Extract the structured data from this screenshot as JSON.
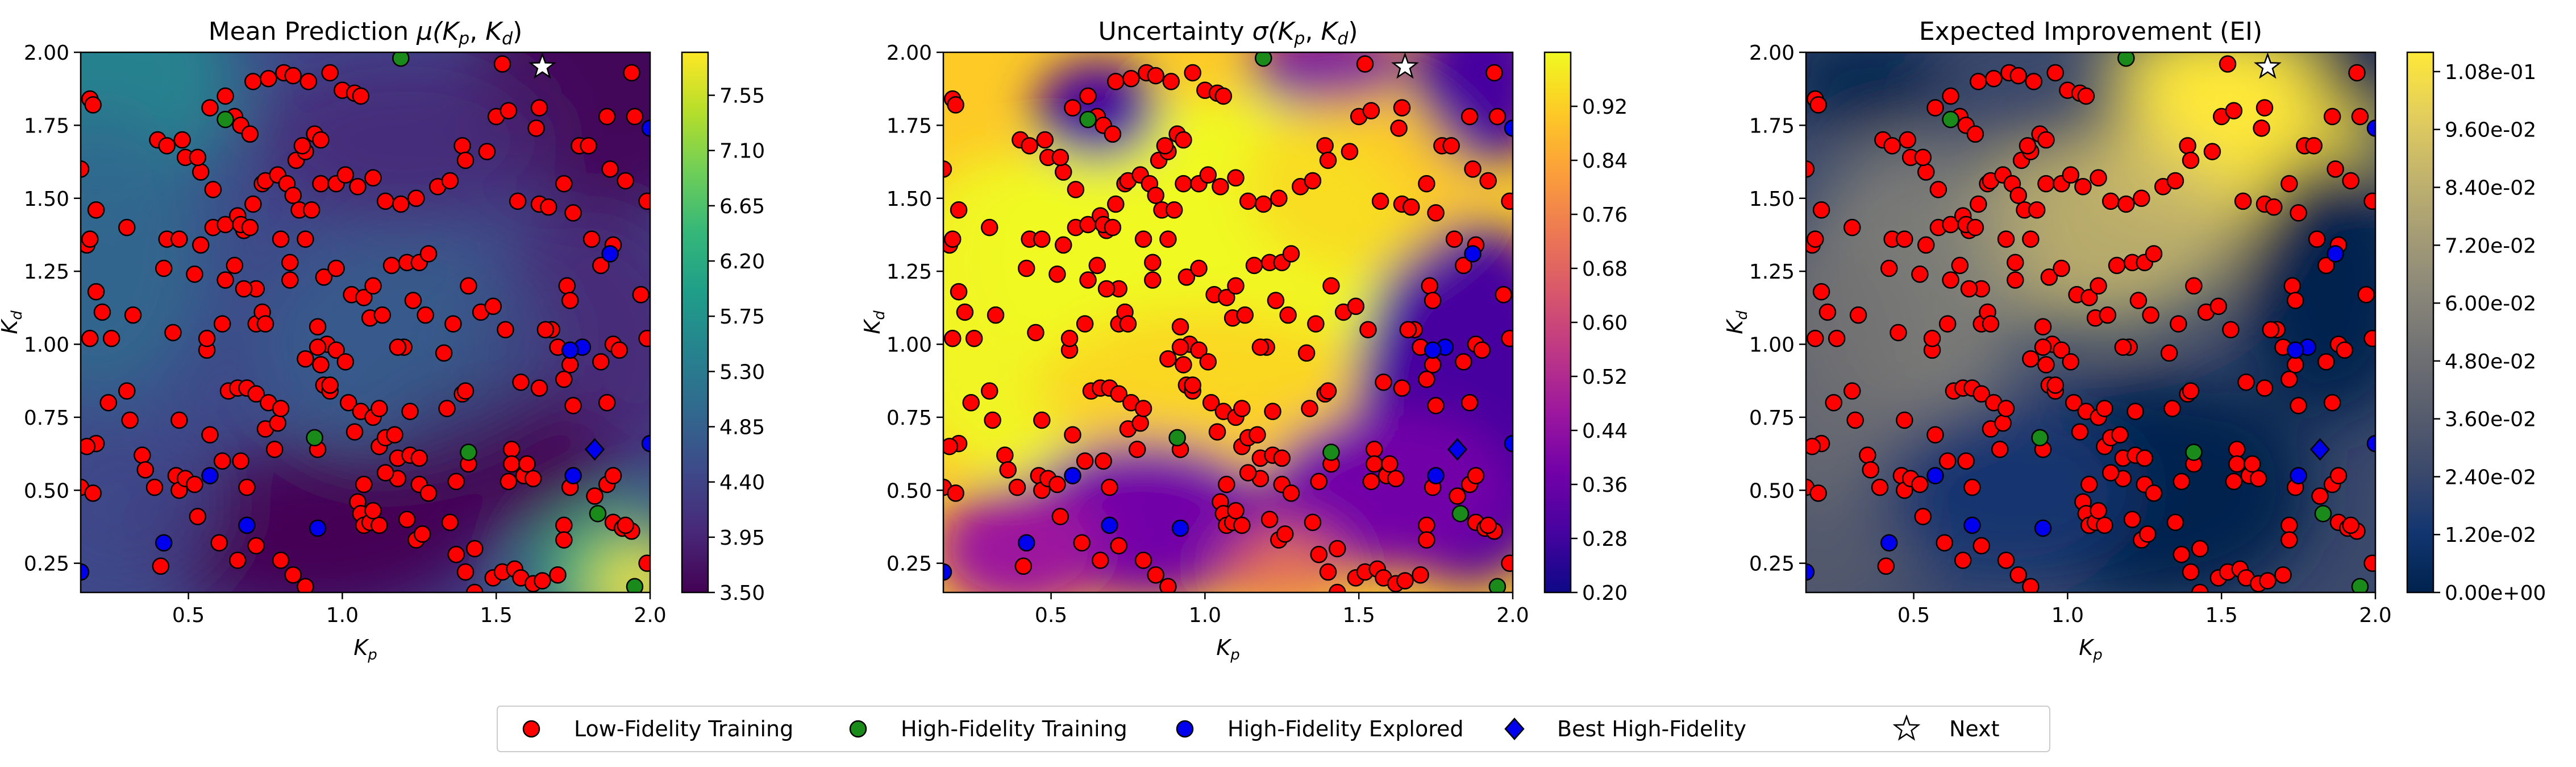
{
  "colors": {
    "low_fidelity": "#ff0000",
    "high_fidelity_training": "#1a8a1a",
    "high_fidelity_explored": "#0000ee",
    "best_high_fidelity": "#0000ee",
    "next": "#ffffff",
    "marker_edge": "#000000"
  },
  "legend": {
    "position": "bottom-center",
    "items": [
      {
        "label": "Low-Fidelity Training",
        "marker": "circle",
        "color": "#ff0000"
      },
      {
        "label": "High-Fidelity Training",
        "marker": "circle",
        "color": "#1a8a1a"
      },
      {
        "label": "High-Fidelity Explored",
        "marker": "circle",
        "color": "#0000ee"
      },
      {
        "label": "Best High-Fidelity",
        "marker": "diamond",
        "color": "#0000ee"
      },
      {
        "label": "Next",
        "marker": "star",
        "color": "#ffffff"
      }
    ]
  },
  "chart_data": [
    {
      "type": "heatmap",
      "title": "Mean Prediction μ(Kp, Kd)",
      "title_main": "Mean Prediction ",
      "title_func": "μ",
      "xlabel": "K",
      "xlabel_sub": "p",
      "ylabel": "K",
      "ylabel_sub": "d",
      "xlim": [
        0.15,
        2.0
      ],
      "ylim": [
        0.15,
        2.0
      ],
      "xticks": [
        "0.5",
        "1.0",
        "1.5",
        "2.0"
      ],
      "yticks": [
        "0.25",
        "0.50",
        "0.75",
        "1.00",
        "1.25",
        "1.50",
        "1.75",
        "2.00"
      ],
      "colormap": "viridis",
      "colorbar_range": [
        3.5,
        7.9
      ],
      "colorbar_ticks": [
        "3.50",
        "3.95",
        "4.40",
        "4.85",
        "5.30",
        "5.75",
        "6.20",
        "6.65",
        "7.10",
        "7.55"
      ]
    },
    {
      "type": "heatmap",
      "title": "Uncertainty σ(Kp, Kd)",
      "title_main": "Uncertainty ",
      "title_func": "σ",
      "xlabel": "K",
      "xlabel_sub": "p",
      "ylabel": "K",
      "ylabel_sub": "d",
      "xlim": [
        0.15,
        2.0
      ],
      "ylim": [
        0.15,
        2.0
      ],
      "xticks": [
        "0.5",
        "1.0",
        "1.5",
        "2.0"
      ],
      "yticks": [
        "0.25",
        "0.50",
        "0.75",
        "1.00",
        "1.25",
        "1.50",
        "1.75",
        "2.00"
      ],
      "colormap": "plasma",
      "colorbar_range": [
        0.2,
        1.0
      ],
      "colorbar_ticks": [
        "0.20",
        "0.28",
        "0.36",
        "0.44",
        "0.52",
        "0.60",
        "0.68",
        "0.76",
        "0.84",
        "0.92"
      ]
    },
    {
      "type": "heatmap",
      "title": "Expected Improvement (EI)",
      "xlabel": "K",
      "xlabel_sub": "p",
      "ylabel": "K",
      "ylabel_sub": "d",
      "xlim": [
        0.15,
        2.0
      ],
      "ylim": [
        0.15,
        2.0
      ],
      "xticks": [
        "0.5",
        "1.0",
        "1.5",
        "2.0"
      ],
      "yticks": [
        "0.25",
        "0.50",
        "0.75",
        "1.00",
        "1.25",
        "1.50",
        "1.75",
        "2.00"
      ],
      "colormap": "cividis",
      "colorbar_range": [
        0.0,
        0.112
      ],
      "colorbar_ticks": [
        "0.00e+00",
        "1.20e-02",
        "2.40e-02",
        "3.60e-02",
        "4.80e-02",
        "6.00e-02",
        "7.20e-02",
        "8.40e-02",
        "9.60e-02",
        "1.08e-01"
      ]
    }
  ],
  "points": {
    "low_fidelity_training": [
      [
        0.18,
        1.84
      ],
      [
        0.19,
        1.82
      ],
      [
        0.15,
        1.6
      ],
      [
        0.17,
        1.34
      ],
      [
        0.18,
        1.36
      ],
      [
        0.2,
        1.46
      ],
      [
        0.2,
        1.18
      ],
      [
        0.22,
        1.11
      ],
      [
        0.18,
        1.02
      ],
      [
        0.25,
        1.02
      ],
      [
        0.3,
        1.4
      ],
      [
        0.32,
        1.1
      ],
      [
        0.24,
        0.8
      ],
      [
        0.3,
        0.84
      ],
      [
        0.31,
        0.74
      ],
      [
        0.2,
        0.66
      ],
      [
        0.17,
        0.65
      ],
      [
        0.15,
        0.51
      ],
      [
        0.19,
        0.49
      ],
      [
        0.35,
        0.62
      ],
      [
        0.36,
        0.57
      ],
      [
        0.39,
        0.51
      ],
      [
        0.41,
        0.24
      ],
      [
        0.46,
        0.55
      ],
      [
        0.47,
        0.5
      ],
      [
        0.49,
        0.54
      ],
      [
        0.52,
        0.52
      ],
      [
        0.53,
        0.41
      ],
      [
        0.6,
        0.32
      ],
      [
        0.66,
        0.26
      ],
      [
        0.69,
        0.51
      ],
      [
        0.72,
        0.31
      ],
      [
        0.8,
        0.26
      ],
      [
        0.84,
        0.21
      ],
      [
        0.88,
        0.17
      ],
      [
        0.9,
        0.09
      ],
      [
        0.96,
        0.11
      ],
      [
        0.75,
        0.71
      ],
      [
        0.78,
        0.64
      ],
      [
        0.92,
        0.64
      ],
      [
        0.57,
        0.69
      ],
      [
        0.47,
        0.74
      ],
      [
        0.61,
        0.6
      ],
      [
        0.67,
        0.6
      ],
      [
        0.63,
        0.84
      ],
      [
        0.66,
        0.85
      ],
      [
        0.69,
        0.85
      ],
      [
        0.72,
        0.83
      ],
      [
        0.76,
        0.8
      ],
      [
        0.79,
        0.73
      ],
      [
        0.8,
        0.78
      ],
      [
        0.45,
        1.04
      ],
      [
        0.56,
        0.98
      ],
      [
        0.61,
        1.07
      ],
      [
        0.72,
        1.07
      ],
      [
        0.74,
        1.11
      ],
      [
        0.75,
        1.07
      ],
      [
        0.56,
        1.02
      ],
      [
        0.58,
        1.4
      ],
      [
        0.62,
        1.22
      ],
      [
        0.42,
        1.26
      ],
      [
        0.43,
        1.36
      ],
      [
        0.47,
        1.36
      ],
      [
        0.52,
        1.24
      ],
      [
        0.54,
        1.34
      ],
      [
        0.54,
        1.59
      ],
      [
        0.58,
        1.53
      ],
      [
        0.62,
        1.41
      ],
      [
        0.68,
        1.39
      ],
      [
        0.66,
        1.44
      ],
      [
        0.67,
        1.41
      ],
      [
        0.7,
        1.4
      ],
      [
        0.71,
        1.48
      ],
      [
        0.74,
        1.55
      ],
      [
        0.75,
        1.56
      ],
      [
        0.79,
        1.58
      ],
      [
        0.82,
        1.55
      ],
      [
        0.84,
        1.51
      ],
      [
        0.86,
        1.46
      ],
      [
        0.9,
        1.46
      ],
      [
        0.93,
        1.55
      ],
      [
        0.98,
        1.55
      ],
      [
        1.01,
        1.58
      ],
      [
        1.05,
        1.54
      ],
      [
        1.1,
        1.57
      ],
      [
        1.14,
        1.49
      ],
      [
        1.19,
        1.48
      ],
      [
        1.24,
        1.5
      ],
      [
        0.85,
        1.63
      ],
      [
        0.88,
        1.66
      ],
      [
        0.91,
        1.72
      ],
      [
        0.93,
        1.7
      ],
      [
        0.87,
        1.68
      ],
      [
        0.4,
        1.7
      ],
      [
        0.43,
        1.68
      ],
      [
        0.48,
        1.7
      ],
      [
        0.49,
        1.64
      ],
      [
        0.53,
        1.64
      ],
      [
        0.57,
        1.81
      ],
      [
        0.62,
        1.85
      ],
      [
        0.65,
        1.78
      ],
      [
        0.67,
        1.75
      ],
      [
        0.7,
        1.72
      ],
      [
        0.71,
        1.9
      ],
      [
        0.76,
        1.91
      ],
      [
        0.81,
        1.93
      ],
      [
        0.84,
        1.92
      ],
      [
        0.89,
        1.9
      ],
      [
        0.96,
        1.93
      ],
      [
        1.0,
        1.87
      ],
      [
        1.04,
        1.86
      ],
      [
        1.06,
        1.85
      ],
      [
        0.88,
        1.36
      ],
      [
        0.8,
        1.36
      ],
      [
        0.83,
        1.28
      ],
      [
        0.83,
        1.22
      ],
      [
        0.72,
        1.19
      ],
      [
        0.68,
        1.19
      ],
      [
        0.65,
        1.27
      ],
      [
        0.94,
        1.23
      ],
      [
        0.98,
        1.26
      ],
      [
        0.92,
        1.06
      ],
      [
        0.95,
        1.0
      ],
      [
        0.93,
        0.93
      ],
      [
        1.03,
        1.17
      ],
      [
        1.07,
        1.16
      ],
      [
        1.09,
        1.09
      ],
      [
        1.1,
        1.2
      ],
      [
        1.16,
        1.27
      ],
      [
        1.21,
        1.28
      ],
      [
        1.25,
        1.28
      ],
      [
        1.28,
        1.31
      ],
      [
        1.23,
        1.15
      ],
      [
        1.27,
        1.1
      ],
      [
        1.13,
        1.1
      ],
      [
        0.92,
        0.99
      ],
      [
        0.98,
        0.98
      ],
      [
        1.01,
        0.94
      ],
      [
        0.88,
        0.95
      ],
      [
        0.94,
        0.86
      ],
      [
        0.96,
        0.84
      ],
      [
        0.96,
        0.86
      ],
      [
        1.02,
        0.8
      ],
      [
        1.06,
        0.77
      ],
      [
        1.04,
        0.7
      ],
      [
        1.1,
        0.75
      ],
      [
        1.12,
        0.65
      ],
      [
        1.14,
        0.68
      ],
      [
        1.17,
        0.69
      ],
      [
        1.18,
        0.61
      ],
      [
        1.22,
        0.62
      ],
      [
        1.25,
        0.52
      ],
      [
        1.28,
        0.49
      ],
      [
        1.18,
        0.54
      ],
      [
        1.14,
        0.56
      ],
      [
        1.07,
        0.52
      ],
      [
        1.05,
        0.46
      ],
      [
        1.06,
        0.42
      ],
      [
        1.07,
        0.38
      ],
      [
        1.09,
        0.39
      ],
      [
        1.12,
        0.38
      ],
      [
        1.1,
        0.43
      ],
      [
        1.21,
        0.4
      ],
      [
        1.24,
        0.33
      ],
      [
        1.26,
        0.35
      ],
      [
        1.35,
        0.39
      ],
      [
        1.37,
        0.28
      ],
      [
        1.43,
        0.3
      ],
      [
        1.4,
        0.22
      ],
      [
        1.43,
        0.15
      ],
      [
        1.49,
        0.2
      ],
      [
        1.52,
        0.22
      ],
      [
        1.56,
        0.23
      ],
      [
        1.37,
        0.53
      ],
      [
        1.41,
        0.59
      ],
      [
        1.34,
        0.78
      ],
      [
        1.39,
        0.83
      ],
      [
        1.4,
        0.84
      ],
      [
        1.33,
        0.97
      ],
      [
        1.36,
        1.07
      ],
      [
        1.41,
        1.2
      ],
      [
        1.45,
        1.11
      ],
      [
        1.49,
        1.13
      ],
      [
        1.53,
        1.05
      ],
      [
        1.58,
        0.87
      ],
      [
        1.64,
        0.85
      ],
      [
        1.55,
        0.64
      ],
      [
        1.55,
        0.59
      ],
      [
        1.54,
        0.53
      ],
      [
        1.59,
        0.55
      ],
      [
        1.6,
        0.59
      ],
      [
        1.62,
        0.54
      ],
      [
        1.31,
        1.54
      ],
      [
        1.35,
        1.56
      ],
      [
        1.39,
        1.68
      ],
      [
        1.4,
        1.63
      ],
      [
        1.47,
        1.66
      ],
      [
        1.5,
        1.78
      ],
      [
        1.54,
        1.8
      ],
      [
        1.52,
        1.96
      ],
      [
        1.63,
        1.74
      ],
      [
        1.64,
        1.81
      ],
      [
        1.57,
        1.49
      ],
      [
        1.64,
        1.48
      ],
      [
        1.67,
        1.47
      ],
      [
        1.72,
        1.55
      ],
      [
        1.75,
        1.45
      ],
      [
        1.77,
        1.68
      ],
      [
        1.8,
        1.68
      ],
      [
        1.87,
        1.6
      ],
      [
        1.86,
        1.78
      ],
      [
        1.94,
        1.93
      ],
      [
        1.95,
        1.78
      ],
      [
        1.92,
        1.56
      ],
      [
        1.99,
        1.49
      ],
      [
        1.88,
        1.34
      ],
      [
        1.81,
        1.36
      ],
      [
        1.84,
        1.27
      ],
      [
        1.73,
        1.2
      ],
      [
        1.74,
        1.15
      ],
      [
        1.68,
        1.05
      ],
      [
        1.66,
        1.05
      ],
      [
        1.7,
        0.99
      ],
      [
        1.74,
        0.93
      ],
      [
        1.72,
        0.88
      ],
      [
        1.75,
        0.79
      ],
      [
        1.84,
        0.94
      ],
      [
        1.88,
        1.0
      ],
      [
        1.9,
        0.98
      ],
      [
        1.86,
        0.8
      ],
      [
        1.97,
        1.17
      ],
      [
        1.99,
        1.02
      ],
      [
        1.82,
        0.48
      ],
      [
        1.86,
        0.52
      ],
      [
        1.88,
        0.55
      ],
      [
        1.88,
        0.39
      ],
      [
        1.91,
        0.37
      ],
      [
        1.94,
        0.36
      ],
      [
        1.92,
        0.38
      ],
      [
        1.99,
        0.25
      ],
      [
        1.72,
        0.38
      ],
      [
        1.72,
        0.33
      ],
      [
        1.74,
        0.51
      ],
      [
        1.58,
        0.2
      ],
      [
        1.62,
        0.18
      ],
      [
        1.65,
        0.19
      ],
      [
        1.7,
        0.21
      ],
      [
        1.2,
        0.99
      ],
      [
        1.22,
        0.77
      ],
      [
        1.12,
        0.78
      ],
      [
        1.25,
        0.61
      ],
      [
        1.18,
        0.99
      ]
    ],
    "high_fidelity_training": [
      [
        0.62,
        1.77
      ],
      [
        1.19,
        1.98
      ],
      [
        0.91,
        0.68
      ],
      [
        1.41,
        0.63
      ],
      [
        1.83,
        0.42
      ],
      [
        1.95,
        0.17
      ]
    ],
    "high_fidelity_explored": [
      [
        0.57,
        0.55
      ],
      [
        0.42,
        0.32
      ],
      [
        0.69,
        0.38
      ],
      [
        0.92,
        0.37
      ],
      [
        1.87,
        1.31
      ],
      [
        1.78,
        0.99
      ],
      [
        1.75,
        0.55
      ],
      [
        2.0,
        0.66
      ],
      [
        2.0,
        1.74
      ],
      [
        0.15,
        0.22
      ],
      [
        1.74,
        0.98
      ]
    ],
    "best_high_fidelity": [
      [
        1.82,
        0.64
      ]
    ],
    "next": [
      [
        1.65,
        1.95
      ]
    ]
  }
}
